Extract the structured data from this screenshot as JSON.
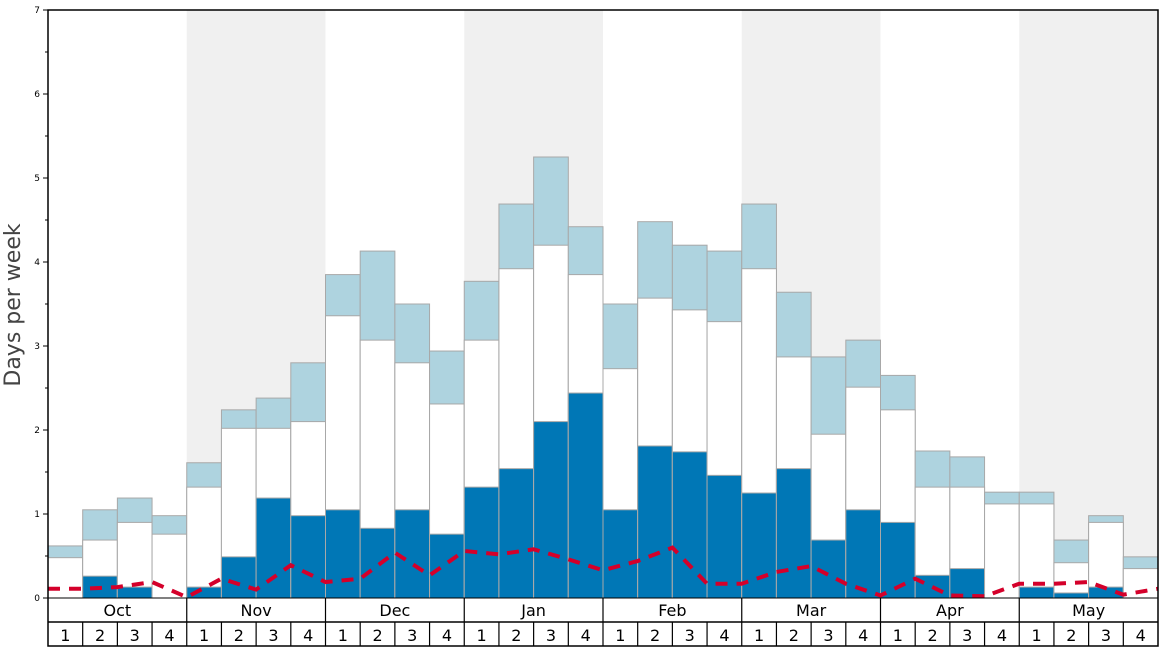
{
  "chart_data": {
    "type": "bar",
    "subtype": "stacked-bar-with-line",
    "ylabel": "Days per week",
    "ylim": [
      0,
      7
    ],
    "yticks": [
      "0",
      "1",
      "2",
      "3",
      "4",
      "5",
      "6",
      "7"
    ],
    "months": [
      "Oct",
      "Nov",
      "Dec",
      "Jan",
      "Feb",
      "Mar",
      "Apr",
      "May"
    ],
    "weeks_per_month": [
      "1",
      "2",
      "3",
      "4"
    ],
    "shaded_months": [
      "Nov",
      "Jan",
      "Mar",
      "May"
    ],
    "series": [
      {
        "name": "dark",
        "color": "#0077b6",
        "values": [
          0,
          0.26,
          0.13,
          0,
          0.13,
          0.49,
          1.19,
          0.98,
          1.05,
          0.83,
          1.05,
          0.76,
          1.32,
          1.54,
          2.1,
          2.44,
          1.05,
          1.81,
          1.74,
          1.46,
          1.25,
          1.54,
          0.69,
          1.05,
          0.9,
          0.27,
          0.35,
          0,
          0.13,
          0.06,
          0.13,
          0
        ]
      },
      {
        "name": "white_cumulative",
        "color": "#ffffff",
        "values": [
          0.48,
          0.69,
          0.9,
          0.76,
          1.32,
          2.02,
          2.02,
          2.1,
          3.36,
          3.07,
          2.8,
          2.31,
          3.07,
          3.92,
          4.2,
          3.85,
          2.73,
          3.57,
          3.43,
          3.29,
          3.92,
          2.87,
          1.95,
          2.51,
          2.24,
          1.32,
          1.32,
          1.12,
          1.12,
          0.42,
          0.9,
          0.35
        ]
      },
      {
        "name": "light_cumulative",
        "color": "#aed3df",
        "values": [
          0.62,
          1.05,
          1.19,
          0.98,
          1.61,
          2.24,
          2.38,
          2.8,
          3.85,
          4.13,
          3.5,
          2.94,
          3.77,
          4.69,
          5.25,
          4.42,
          3.5,
          4.48,
          4.2,
          4.13,
          4.69,
          3.64,
          2.87,
          3.07,
          2.65,
          1.75,
          1.68,
          1.26,
          1.26,
          0.69,
          0.98,
          0.49
        ]
      }
    ],
    "line": {
      "name": "dashed-line",
      "color": "#d4002a",
      "values": [
        0.11,
        0.11,
        0.13,
        0.19,
        0.01,
        0.23,
        0.1,
        0.39,
        0.19,
        0.23,
        0.54,
        0.27,
        0.56,
        0.52,
        0.58,
        0.46,
        0.33,
        0.44,
        0.6,
        0.17,
        0.17,
        0.31,
        0.38,
        0.17,
        0.03,
        0.23,
        0.03,
        0.02,
        0.17,
        0.17,
        0.19,
        0.04,
        0.11
      ]
    },
    "grid": false,
    "legend": "none"
  }
}
